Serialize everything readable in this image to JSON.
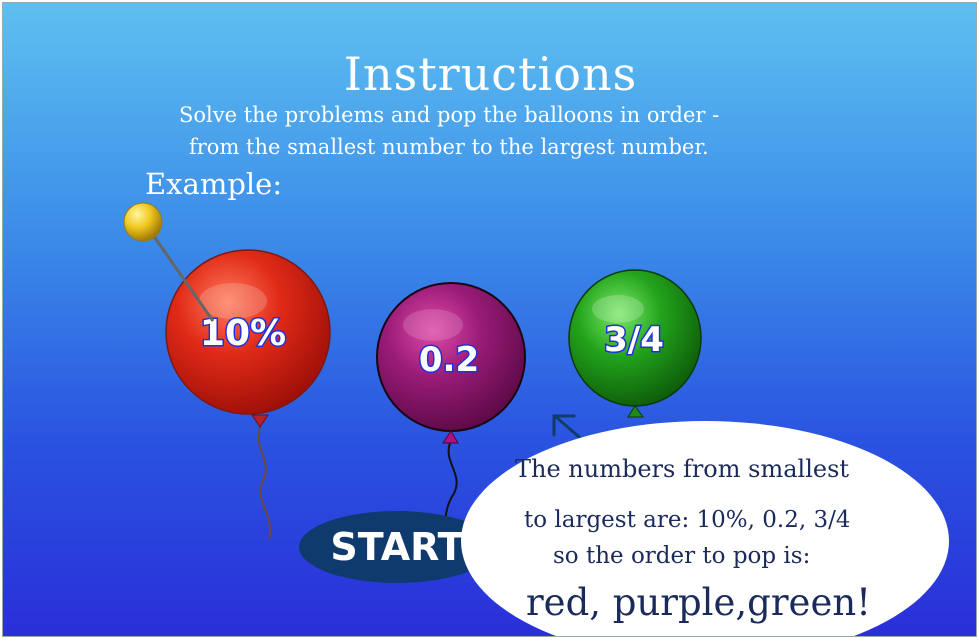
{
  "screen": {
    "title": "Instructions",
    "instructions": [
      "Solve the problems and pop the balloons in order  -",
      "from the smallest number to the largest number."
    ],
    "example_label": "Example:"
  },
  "balloons": [
    {
      "label": "10%",
      "color": "#d81e14"
    },
    {
      "label": "0.2",
      "color": "#8a1a6e"
    },
    {
      "label": "3/4",
      "color": "#1f9a1a"
    }
  ],
  "start_button": {
    "label": "START"
  },
  "explanation": {
    "line1": "The numbers from smallest",
    "line2": "to largest are:  10%, 0.2, 3/4",
    "line3": "so the order to pop is:",
    "answer": "red, purple,green!"
  },
  "colors": {
    "background_top": "#5ec0f0",
    "background_bottom": "#2a2fd8",
    "start_button": "#0f3a6e",
    "pin_head": "#f0c820"
  }
}
